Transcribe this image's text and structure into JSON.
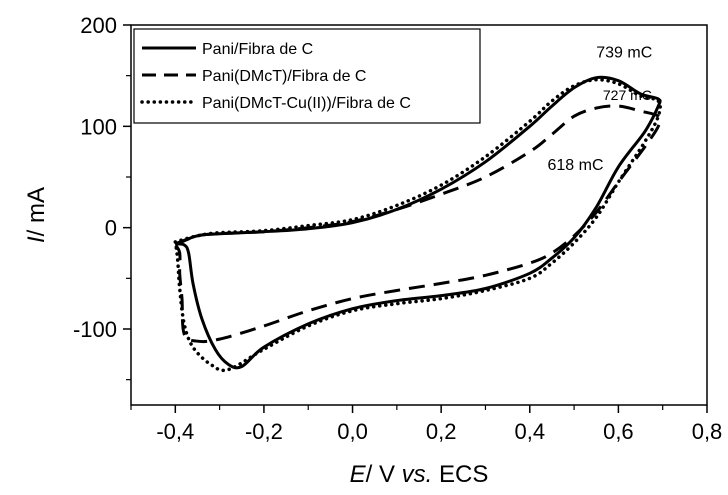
{
  "chart_data": {
    "type": "line",
    "xlabel": {
      "italic": "E",
      "rest": "/ V ",
      "italic2": "vs.",
      "rest2": " ECS"
    },
    "ylabel": {
      "italic": "I",
      "rest": "/ mA"
    },
    "xlim": [
      -0.5,
      0.8
    ],
    "ylim": [
      -175,
      200
    ],
    "x_ticks": [
      -0.4,
      -0.2,
      0.0,
      0.2,
      0.4,
      0.6,
      0.8
    ],
    "x_tick_labels": [
      "-0,4",
      "-0,2",
      "0,0",
      "0,2",
      "0,4",
      "0,6",
      "0,8"
    ],
    "y_ticks": [
      -100,
      0,
      100,
      200
    ],
    "y_tick_labels": [
      "-100",
      "0",
      "100",
      "200"
    ],
    "legend_position": "top-left",
    "series": [
      {
        "name": "Pani/Fibra de C",
        "style": "solid",
        "points": [
          [
            -0.4,
            -16
          ],
          [
            -0.35,
            -8
          ],
          [
            -0.3,
            -6
          ],
          [
            -0.2,
            -4
          ],
          [
            -0.1,
            -1
          ],
          [
            0.0,
            5
          ],
          [
            0.1,
            18
          ],
          [
            0.2,
            38
          ],
          [
            0.3,
            65
          ],
          [
            0.4,
            100
          ],
          [
            0.45,
            120
          ],
          [
            0.5,
            138
          ],
          [
            0.55,
            148
          ],
          [
            0.6,
            145
          ],
          [
            0.65,
            132
          ],
          [
            0.69,
            127
          ],
          [
            0.69,
            120
          ],
          [
            0.66,
            95
          ],
          [
            0.6,
            60
          ],
          [
            0.55,
            20
          ],
          [
            0.5,
            -10
          ],
          [
            0.45,
            -30
          ],
          [
            0.4,
            -45
          ],
          [
            0.3,
            -60
          ],
          [
            0.2,
            -67
          ],
          [
            0.1,
            -72
          ],
          [
            0.0,
            -80
          ],
          [
            -0.1,
            -95
          ],
          [
            -0.2,
            -118
          ],
          [
            -0.25,
            -137
          ],
          [
            -0.28,
            -135
          ],
          [
            -0.31,
            -120
          ],
          [
            -0.34,
            -90
          ],
          [
            -0.36,
            -55
          ],
          [
            -0.37,
            -25
          ],
          [
            -0.38,
            -17
          ],
          [
            -0.4,
            -16
          ]
        ]
      },
      {
        "name": "Pani(DMcT)/Fibra de C",
        "style": "dashed",
        "points": [
          [
            -0.4,
            -17
          ],
          [
            -0.35,
            -8
          ],
          [
            -0.3,
            -6
          ],
          [
            -0.2,
            -4
          ],
          [
            -0.1,
            0
          ],
          [
            0.0,
            6
          ],
          [
            0.1,
            18
          ],
          [
            0.2,
            33
          ],
          [
            0.3,
            50
          ],
          [
            0.4,
            75
          ],
          [
            0.45,
            92
          ],
          [
            0.5,
            110
          ],
          [
            0.55,
            118
          ],
          [
            0.6,
            120
          ],
          [
            0.65,
            115
          ],
          [
            0.69,
            110
          ],
          [
            0.69,
            100
          ],
          [
            0.66,
            80
          ],
          [
            0.6,
            45
          ],
          [
            0.55,
            15
          ],
          [
            0.5,
            -8
          ],
          [
            0.45,
            -25
          ],
          [
            0.4,
            -35
          ],
          [
            0.3,
            -47
          ],
          [
            0.2,
            -55
          ],
          [
            0.1,
            -62
          ],
          [
            0.0,
            -70
          ],
          [
            -0.1,
            -82
          ],
          [
            -0.2,
            -97
          ],
          [
            -0.3,
            -110
          ],
          [
            -0.35,
            -112
          ],
          [
            -0.38,
            -105
          ],
          [
            -0.385,
            -70
          ],
          [
            -0.39,
            -45
          ],
          [
            -0.39,
            -25
          ],
          [
            -0.4,
            -17
          ]
        ]
      },
      {
        "name": "Pani(DMcT-Cu(II))/Fibra de C",
        "style": "dotted",
        "points": [
          [
            -0.4,
            -14
          ],
          [
            -0.35,
            -8
          ],
          [
            -0.3,
            -5
          ],
          [
            -0.2,
            -3
          ],
          [
            -0.1,
            2
          ],
          [
            0.0,
            8
          ],
          [
            0.1,
            22
          ],
          [
            0.2,
            42
          ],
          [
            0.3,
            70
          ],
          [
            0.4,
            105
          ],
          [
            0.45,
            125
          ],
          [
            0.5,
            140
          ],
          [
            0.55,
            146
          ],
          [
            0.6,
            142
          ],
          [
            0.65,
            130
          ],
          [
            0.69,
            125
          ],
          [
            0.69,
            110
          ],
          [
            0.66,
            85
          ],
          [
            0.6,
            45
          ],
          [
            0.55,
            10
          ],
          [
            0.5,
            -15
          ],
          [
            0.45,
            -35
          ],
          [
            0.4,
            -50
          ],
          [
            0.3,
            -62
          ],
          [
            0.2,
            -70
          ],
          [
            0.1,
            -75
          ],
          [
            0.0,
            -82
          ],
          [
            -0.1,
            -97
          ],
          [
            -0.2,
            -120
          ],
          [
            -0.28,
            -140
          ],
          [
            -0.32,
            -135
          ],
          [
            -0.36,
            -118
          ],
          [
            -0.38,
            -95
          ],
          [
            -0.39,
            -60
          ],
          [
            -0.395,
            -30
          ],
          [
            -0.4,
            -14
          ]
        ]
      }
    ],
    "annotations": [
      {
        "text": "739 mC",
        "x": 0.55,
        "y": 168,
        "size": "normal"
      },
      {
        "text": "727 mC",
        "x": 0.565,
        "y": 126,
        "size": "small"
      },
      {
        "text": "618 mC",
        "x": 0.44,
        "y": 57,
        "size": "normal"
      }
    ]
  }
}
